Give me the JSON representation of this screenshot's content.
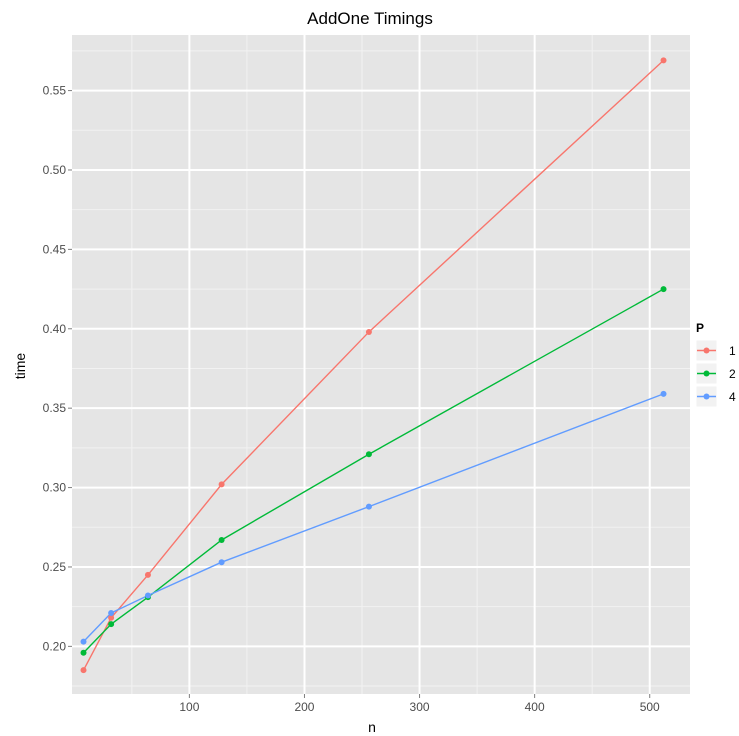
{
  "chart_data": {
    "type": "line",
    "title": "AddOne Timings",
    "xlabel": "n",
    "ylabel": "time",
    "xlim": [
      -2,
      535
    ],
    "ylim": [
      0.17,
      0.585
    ],
    "x_ticks": [
      100,
      200,
      300,
      400,
      500
    ],
    "x_minor_ticks": [
      50,
      150,
      250,
      350,
      450
    ],
    "y_ticks": [
      0.2,
      0.25,
      0.3,
      0.35,
      0.4,
      0.45,
      0.5,
      0.55
    ],
    "y_tick_labels": [
      "0.20",
      "0.25",
      "0.30",
      "0.35",
      "0.40",
      "0.45",
      "0.50",
      "0.55"
    ],
    "y_minor_ticks": [
      0.175,
      0.225,
      0.275,
      0.325,
      0.375,
      0.425,
      0.475,
      0.525,
      0.575
    ],
    "grid": true,
    "legend": {
      "title": "P",
      "position": "right"
    },
    "series": [
      {
        "name": "1",
        "color": "#F8766D",
        "x": [
          8,
          32,
          64,
          128,
          256,
          512
        ],
        "values": [
          0.185,
          0.218,
          0.245,
          0.302,
          0.398,
          0.569
        ]
      },
      {
        "name": "2",
        "color": "#00BA38",
        "x": [
          8,
          32,
          64,
          128,
          256,
          512
        ],
        "values": [
          0.196,
          0.214,
          0.231,
          0.267,
          0.321,
          0.425
        ]
      },
      {
        "name": "4",
        "color": "#619CFF",
        "x": [
          8,
          32,
          64,
          128,
          256,
          512
        ],
        "values": [
          0.203,
          0.221,
          0.232,
          0.253,
          0.288,
          0.359
        ]
      }
    ]
  }
}
